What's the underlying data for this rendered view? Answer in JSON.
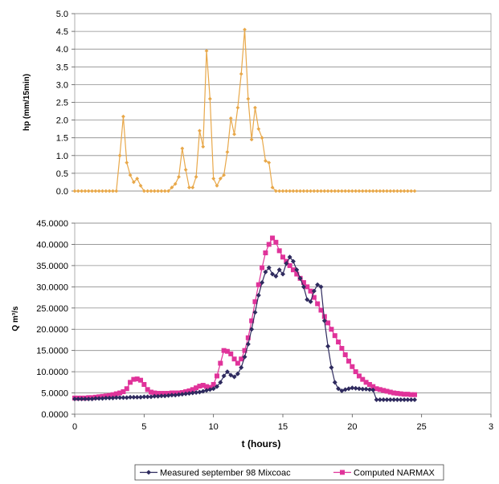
{
  "chart_data": [
    {
      "type": "line",
      "ylabel": "hp (mm/15min)",
      "ylim": [
        0,
        5.0
      ],
      "yticks": [
        "0.0",
        "0.5",
        "1.0",
        "1.5",
        "2.0",
        "2.5",
        "3.0",
        "3.5",
        "4.0",
        "4.5",
        "5.0"
      ],
      "xlim": [
        0,
        24.5
      ],
      "grid": true,
      "color": "#E8A84A",
      "series": [
        {
          "x": [
            0.0,
            0.25,
            0.5,
            0.75,
            1.0,
            1.25,
            1.5,
            1.75,
            2.0,
            2.25,
            2.5,
            2.75,
            3.0,
            3.25,
            3.5,
            3.75,
            4.0,
            4.25,
            4.5,
            4.75,
            5.0,
            5.25,
            5.5,
            5.75,
            6.0,
            6.25,
            6.5,
            6.75,
            7.0,
            7.25,
            7.5,
            7.75,
            8.0,
            8.25,
            8.5,
            8.75,
            9.0,
            9.25,
            9.5,
            9.75,
            10.0,
            10.25,
            10.5,
            10.75,
            11.0,
            11.25,
            11.5,
            11.75,
            12.0,
            12.25,
            12.5,
            12.75,
            13.0,
            13.25,
            13.5,
            13.75,
            14.0,
            14.25,
            14.5,
            14.75,
            15.0,
            15.25,
            15.5,
            15.75,
            16.0,
            16.25,
            16.5,
            16.75,
            17.0,
            17.25,
            17.5,
            17.75,
            18.0,
            18.25,
            18.5,
            18.75,
            19.0,
            19.25,
            19.5,
            19.75,
            20.0,
            20.25,
            20.5,
            20.75,
            21.0,
            21.25,
            21.5,
            21.75,
            22.0,
            22.25,
            22.5,
            22.75,
            23.0,
            23.25,
            23.5,
            23.75,
            24.0,
            24.25,
            24.5
          ],
          "values": [
            0,
            0,
            0,
            0,
            0,
            0,
            0,
            0,
            0,
            0,
            0,
            0,
            0,
            1.0,
            2.1,
            0.8,
            0.45,
            0.25,
            0.35,
            0.15,
            0,
            0,
            0,
            0,
            0,
            0,
            0,
            0,
            0.1,
            0.2,
            0.4,
            1.2,
            0.6,
            0.1,
            0.1,
            0.4,
            1.7,
            1.25,
            3.95,
            2.6,
            0.35,
            0.15,
            0.35,
            0.45,
            1.1,
            2.05,
            1.6,
            2.35,
            3.3,
            4.55,
            2.6,
            1.45,
            2.35,
            1.75,
            1.5,
            0.85,
            0.8,
            0.1,
            0,
            0,
            0,
            0,
            0,
            0,
            0,
            0,
            0,
            0,
            0,
            0,
            0,
            0,
            0,
            0,
            0,
            0,
            0,
            0,
            0,
            0,
            0,
            0,
            0,
            0,
            0,
            0,
            0,
            0,
            0,
            0,
            0,
            0,
            0,
            0,
            0,
            0,
            0,
            0,
            0
          ]
        }
      ]
    },
    {
      "type": "line",
      "ylabel": "Q m³/s",
      "xlabel": "t (hours)",
      "xlim": [
        0,
        30
      ],
      "xticks": [
        "0",
        "5",
        "10",
        "15",
        "20",
        "25",
        "3"
      ],
      "ylim": [
        0,
        45
      ],
      "yticks": [
        "0.0000",
        "5.0000",
        "10.0000",
        "15.0000",
        "20.0000",
        "25.0000",
        "30.0000",
        "35.0000",
        "40.0000",
        "45.0000"
      ],
      "grid": true,
      "legend_position": "bottom",
      "series": [
        {
          "name": "Measured september 98 Mixcoac",
          "color": "#2E2A5E",
          "marker": "diamond",
          "x": [
            0.0,
            0.25,
            0.5,
            0.75,
            1.0,
            1.25,
            1.5,
            1.75,
            2.0,
            2.25,
            2.5,
            2.75,
            3.0,
            3.25,
            3.5,
            3.75,
            4.0,
            4.25,
            4.5,
            4.75,
            5.0,
            5.25,
            5.5,
            5.75,
            6.0,
            6.25,
            6.5,
            6.75,
            7.0,
            7.25,
            7.5,
            7.75,
            8.0,
            8.25,
            8.5,
            8.75,
            9.0,
            9.25,
            9.5,
            9.75,
            10.0,
            10.25,
            10.5,
            10.75,
            11.0,
            11.25,
            11.5,
            11.75,
            12.0,
            12.25,
            12.5,
            12.75,
            13.0,
            13.25,
            13.5,
            13.75,
            14.0,
            14.25,
            14.5,
            14.75,
            15.0,
            15.25,
            15.5,
            15.75,
            16.0,
            16.25,
            16.5,
            16.75,
            17.0,
            17.25,
            17.5,
            17.75,
            18.0,
            18.25,
            18.5,
            18.75,
            19.0,
            19.25,
            19.5,
            19.75,
            20.0,
            20.25,
            20.5,
            20.75,
            21.0,
            21.25,
            21.5,
            21.75,
            22.0,
            22.25,
            22.5,
            22.75,
            23.0,
            23.25,
            23.5,
            23.75,
            24.0,
            24.25,
            24.5
          ],
          "values": [
            3.6,
            3.6,
            3.6,
            3.6,
            3.6,
            3.6,
            3.7,
            3.7,
            3.7,
            3.8,
            3.8,
            3.8,
            3.9,
            3.9,
            3.9,
            3.9,
            4.0,
            4.0,
            4.0,
            4.0,
            4.1,
            4.1,
            4.1,
            4.2,
            4.2,
            4.3,
            4.3,
            4.4,
            4.5,
            4.5,
            4.6,
            4.7,
            4.8,
            4.9,
            5.0,
            5.1,
            5.2,
            5.4,
            5.6,
            5.8,
            6.0,
            6.5,
            7.5,
            9.0,
            10.0,
            9.2,
            8.8,
            9.5,
            11.0,
            13.5,
            16.5,
            20.0,
            24.0,
            28.0,
            31.0,
            33.5,
            34.5,
            33.0,
            32.5,
            34.0,
            33.0,
            35.5,
            37.0,
            36.0,
            34.0,
            32.0,
            30.0,
            27.0,
            26.5,
            29.0,
            30.5,
            30.0,
            22.0,
            16.0,
            11.0,
            7.5,
            6.0,
            5.5,
            5.8,
            6.0,
            6.2,
            6.1,
            6.0,
            5.9,
            5.9,
            5.8,
            5.7,
            3.4,
            3.4,
            3.4,
            3.4,
            3.4,
            3.4,
            3.4,
            3.4,
            3.4,
            3.4,
            3.4,
            3.4
          ]
        },
        {
          "name": "Computed NARMAX",
          "color": "#E0339A",
          "marker": "square",
          "x": [
            0.0,
            0.25,
            0.5,
            0.75,
            1.0,
            1.25,
            1.5,
            1.75,
            2.0,
            2.25,
            2.5,
            2.75,
            3.0,
            3.25,
            3.5,
            3.75,
            4.0,
            4.25,
            4.5,
            4.75,
            5.0,
            5.25,
            5.5,
            5.75,
            6.0,
            6.25,
            6.5,
            6.75,
            7.0,
            7.25,
            7.5,
            7.75,
            8.0,
            8.25,
            8.5,
            8.75,
            9.0,
            9.25,
            9.5,
            9.75,
            10.0,
            10.25,
            10.5,
            10.75,
            11.0,
            11.25,
            11.5,
            11.75,
            12.0,
            12.25,
            12.5,
            12.75,
            13.0,
            13.25,
            13.5,
            13.75,
            14.0,
            14.25,
            14.5,
            14.75,
            15.0,
            15.25,
            15.5,
            15.75,
            16.0,
            16.25,
            16.5,
            16.75,
            17.0,
            17.25,
            17.5,
            17.75,
            18.0,
            18.25,
            18.5,
            18.75,
            19.0,
            19.25,
            19.5,
            19.75,
            20.0,
            20.25,
            20.5,
            20.75,
            21.0,
            21.25,
            21.5,
            21.75,
            22.0,
            22.25,
            22.5,
            22.75,
            23.0,
            23.25,
            23.5,
            23.75,
            24.0,
            24.25,
            24.5
          ],
          "values": [
            3.8,
            3.8,
            3.8,
            3.8,
            3.9,
            3.9,
            4.0,
            4.1,
            4.2,
            4.3,
            4.4,
            4.6,
            4.8,
            5.0,
            5.3,
            6.0,
            7.5,
            8.2,
            8.3,
            8.0,
            7.0,
            5.8,
            5.2,
            5.0,
            4.9,
            4.9,
            4.9,
            4.9,
            5.0,
            5.0,
            5.0,
            5.1,
            5.3,
            5.5,
            5.8,
            6.2,
            6.6,
            6.8,
            6.5,
            6.3,
            7.0,
            9.0,
            12.0,
            15.0,
            14.8,
            14.2,
            13.0,
            12.0,
            13.0,
            15.0,
            18.0,
            22.0,
            26.5,
            30.5,
            34.5,
            38.0,
            40.0,
            41.5,
            40.5,
            38.5,
            37.0,
            36.0,
            35.0,
            34.0,
            33.0,
            32.0,
            31.0,
            30.0,
            29.0,
            27.5,
            26.0,
            24.5,
            23.0,
            21.5,
            20.0,
            18.5,
            17.0,
            15.5,
            14.0,
            12.5,
            11.2,
            10.0,
            9.0,
            8.2,
            7.5,
            7.0,
            6.5,
            6.0,
            5.8,
            5.6,
            5.4,
            5.2,
            5.0,
            4.9,
            4.8,
            4.7,
            4.7,
            4.6,
            4.6
          ]
        }
      ]
    }
  ]
}
